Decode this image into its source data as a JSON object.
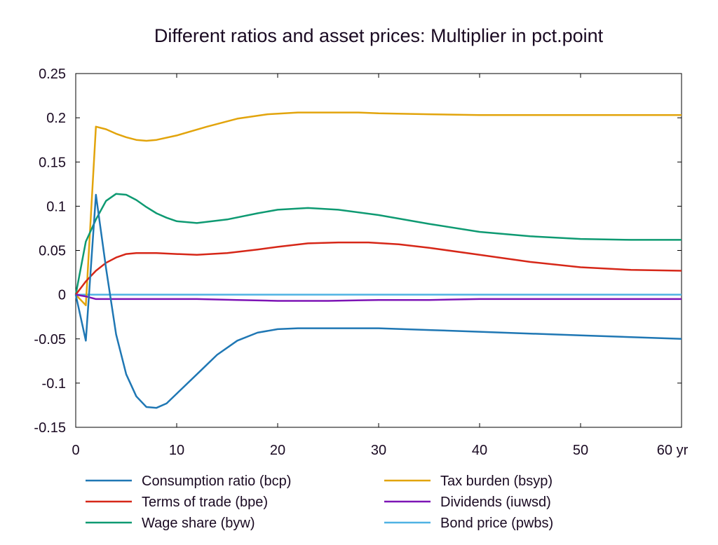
{
  "chart_data": {
    "type": "line",
    "title": "Different ratios and asset prices: Multiplier in pct.point",
    "xlabel": "",
    "ylabel": "",
    "xlim": [
      0,
      60
    ],
    "ylim": [
      -0.15,
      0.25
    ],
    "x_ticks": [
      0,
      10,
      20,
      30,
      40,
      50,
      60
    ],
    "x_tick_labels": [
      "0",
      "10",
      "20",
      "30",
      "40",
      "50",
      "60 yr"
    ],
    "y_ticks": [
      -0.15,
      -0.1,
      -0.05,
      0,
      0.05,
      0.1,
      0.15,
      0.2,
      0.25
    ],
    "y_tick_labels": [
      "-0.15",
      "-0.1",
      "-0.05",
      "0",
      "0.05",
      "0.1",
      "0.15",
      "0.2",
      "0.25"
    ],
    "grid": false,
    "legend_position": "bottom",
    "series": [
      {
        "name": "Consumption ratio (bcp)",
        "color": "#1f77b4",
        "points": [
          [
            0,
            0
          ],
          [
            1,
            -0.052
          ],
          [
            2,
            0.113
          ],
          [
            3,
            0.03
          ],
          [
            4,
            -0.045
          ],
          [
            5,
            -0.09
          ],
          [
            6,
            -0.115
          ],
          [
            7,
            -0.127
          ],
          [
            8,
            -0.128
          ],
          [
            9,
            -0.123
          ],
          [
            10,
            -0.112
          ],
          [
            12,
            -0.09
          ],
          [
            14,
            -0.068
          ],
          [
            16,
            -0.052
          ],
          [
            18,
            -0.043
          ],
          [
            20,
            -0.039
          ],
          [
            22,
            -0.038
          ],
          [
            25,
            -0.038
          ],
          [
            30,
            -0.038
          ],
          [
            35,
            -0.04
          ],
          [
            40,
            -0.042
          ],
          [
            45,
            -0.044
          ],
          [
            50,
            -0.046
          ],
          [
            55,
            -0.048
          ],
          [
            60,
            -0.05
          ]
        ]
      },
      {
        "name": "Terms of trade (bpe)",
        "color": "#d62718",
        "points": [
          [
            0,
            0
          ],
          [
            1,
            0.015
          ],
          [
            2,
            0.027
          ],
          [
            3,
            0.036
          ],
          [
            4,
            0.042
          ],
          [
            5,
            0.046
          ],
          [
            6,
            0.047
          ],
          [
            8,
            0.047
          ],
          [
            10,
            0.046
          ],
          [
            12,
            0.045
          ],
          [
            15,
            0.047
          ],
          [
            18,
            0.051
          ],
          [
            20,
            0.054
          ],
          [
            23,
            0.058
          ],
          [
            26,
            0.059
          ],
          [
            29,
            0.059
          ],
          [
            32,
            0.057
          ],
          [
            35,
            0.053
          ],
          [
            40,
            0.045
          ],
          [
            45,
            0.037
          ],
          [
            50,
            0.031
          ],
          [
            55,
            0.028
          ],
          [
            60,
            0.027
          ]
        ]
      },
      {
        "name": "Wage share (byw)",
        "color": "#0e9a72",
        "points": [
          [
            0,
            0
          ],
          [
            1,
            0.06
          ],
          [
            2,
            0.085
          ],
          [
            3,
            0.106
          ],
          [
            4,
            0.114
          ],
          [
            5,
            0.113
          ],
          [
            6,
            0.107
          ],
          [
            7,
            0.099
          ],
          [
            8,
            0.092
          ],
          [
            9,
            0.087
          ],
          [
            10,
            0.083
          ],
          [
            12,
            0.081
          ],
          [
            15,
            0.085
          ],
          [
            18,
            0.092
          ],
          [
            20,
            0.096
          ],
          [
            23,
            0.098
          ],
          [
            26,
            0.096
          ],
          [
            30,
            0.09
          ],
          [
            35,
            0.08
          ],
          [
            40,
            0.071
          ],
          [
            45,
            0.066
          ],
          [
            50,
            0.063
          ],
          [
            55,
            0.062
          ],
          [
            60,
            0.062
          ]
        ]
      },
      {
        "name": "Tax burden (bsyp)",
        "color": "#e2a40c",
        "points": [
          [
            0,
            0
          ],
          [
            1,
            -0.012
          ],
          [
            2,
            0.19
          ],
          [
            3,
            0.187
          ],
          [
            4,
            0.182
          ],
          [
            5,
            0.178
          ],
          [
            6,
            0.175
          ],
          [
            7,
            0.174
          ],
          [
            8,
            0.175
          ],
          [
            10,
            0.18
          ],
          [
            13,
            0.19
          ],
          [
            16,
            0.199
          ],
          [
            19,
            0.204
          ],
          [
            22,
            0.206
          ],
          [
            25,
            0.206
          ],
          [
            28,
            0.206
          ],
          [
            30,
            0.205
          ],
          [
            35,
            0.204
          ],
          [
            40,
            0.203
          ],
          [
            45,
            0.203
          ],
          [
            50,
            0.203
          ],
          [
            55,
            0.203
          ],
          [
            60,
            0.203
          ]
        ]
      },
      {
        "name": "Dividends (iuwsd)",
        "color": "#7d14b5",
        "points": [
          [
            0,
            0
          ],
          [
            1,
            -0.002
          ],
          [
            2,
            -0.005
          ],
          [
            3,
            -0.005
          ],
          [
            5,
            -0.005
          ],
          [
            8,
            -0.005
          ],
          [
            12,
            -0.005
          ],
          [
            16,
            -0.006
          ],
          [
            20,
            -0.007
          ],
          [
            25,
            -0.007
          ],
          [
            30,
            -0.006
          ],
          [
            35,
            -0.006
          ],
          [
            40,
            -0.005
          ],
          [
            50,
            -0.005
          ],
          [
            60,
            -0.005
          ]
        ]
      },
      {
        "name": "Bond price (pwbs)",
        "color": "#4fb2e3",
        "points": [
          [
            0,
            0
          ],
          [
            60,
            0
          ]
        ]
      }
    ]
  }
}
